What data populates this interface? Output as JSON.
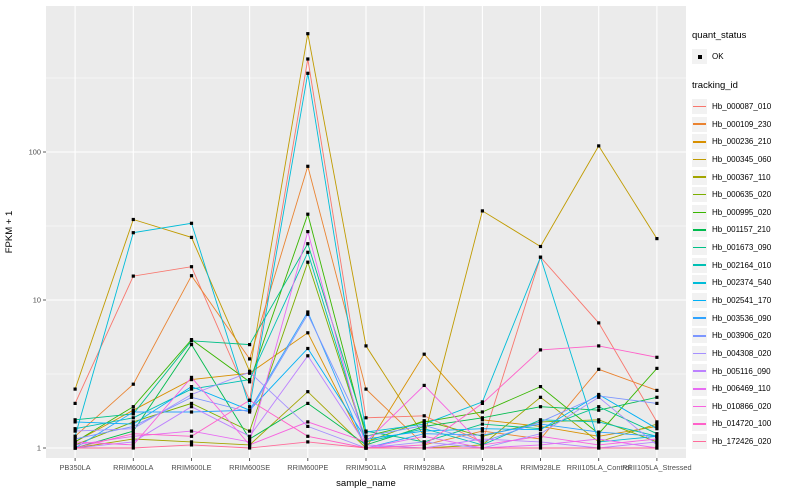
{
  "chart_data": {
    "type": "line",
    "title": "",
    "xlabel": "sample_name",
    "ylabel": "FPKM + 1",
    "y_scale": "log10",
    "yticks": [
      1,
      10,
      100
    ],
    "ylim": [
      1,
      900
    ],
    "grid": true,
    "panel_bg": "#EBEBEB",
    "grid_color": "#FFFFFF",
    "point_color": "#000000",
    "legend_position": "right",
    "categories": [
      "PB350LA",
      "RRIM600LA",
      "RRIM600LE",
      "RRIM600SE",
      "RRIM600PE",
      "RRIM901LA",
      "RRIM928BA",
      "RRIM928LA",
      "RRIM928LE",
      "RRII105LA_Control",
      "RRII105LA_Stressed"
    ],
    "series": [
      {
        "name": "Hb_000087_010",
        "color": "#F8766D",
        "values": [
          2.0,
          14.5,
          16.8,
          2.1,
          425,
          1.6,
          1.65,
          1.1,
          19.5,
          7.0,
          1.5
        ]
      },
      {
        "name": "Hb_000109_230",
        "color": "#EA8331",
        "values": [
          1.2,
          2.7,
          14.6,
          4.0,
          80,
          2.5,
          1.05,
          1.3,
          1.15,
          3.4,
          2.45
        ]
      },
      {
        "name": "Hb_000236_210",
        "color": "#D89000",
        "values": [
          1.1,
          1.8,
          2.9,
          3.2,
          6.0,
          1.0,
          4.3,
          1.55,
          1.4,
          1.2,
          1.4
        ]
      },
      {
        "name": "Hb_000345_060",
        "color": "#C09B00",
        "values": [
          2.5,
          35,
          26.5,
          3.3,
          630,
          4.9,
          1.2,
          40,
          23,
          110,
          26
        ]
      },
      {
        "name": "Hb_000367_110",
        "color": "#A3A500",
        "values": [
          1.0,
          1.15,
          1.1,
          1.05,
          2.4,
          1.0,
          1.0,
          1.05,
          2.2,
          1.1,
          1.45
        ]
      },
      {
        "name": "Hb_000635_020",
        "color": "#7CAE00",
        "values": [
          1.05,
          1.5,
          2.0,
          1.3,
          18,
          1.1,
          1.53,
          1.2,
          1.5,
          1.55,
          1.1
        ]
      },
      {
        "name": "Hb_000995_020",
        "color": "#39B600",
        "values": [
          1.1,
          1.9,
          5.4,
          2.8,
          38,
          1.2,
          1.5,
          1.75,
          2.6,
          1.25,
          3.45
        ]
      },
      {
        "name": "Hb_001157_210",
        "color": "#00BB4E",
        "values": [
          1.0,
          1.3,
          5.0,
          1.15,
          2.0,
          1.05,
          1.4,
          1.6,
          1.9,
          1.8,
          2.2
        ]
      },
      {
        "name": "Hb_001673_090",
        "color": "#00C087",
        "values": [
          1.55,
          1.7,
          5.3,
          5.0,
          24,
          1.3,
          1.1,
          1.45,
          1.35,
          1.9,
          1.25
        ]
      },
      {
        "name": "Hb_002164_010",
        "color": "#00C0B4",
        "values": [
          1.35,
          1.6,
          2.5,
          2.9,
          21,
          1.1,
          1.35,
          1.05,
          1.55,
          1.5,
          1.2
        ]
      },
      {
        "name": "Hb_002374_540",
        "color": "#00BCD8",
        "values": [
          1.2,
          28.5,
          33,
          1.9,
          340,
          1.28,
          1.45,
          2.05,
          19.5,
          1.1,
          1.2
        ]
      },
      {
        "name": "Hb_002541_170",
        "color": "#00B0F6",
        "values": [
          1.5,
          1.45,
          2.6,
          1.8,
          4.7,
          1.15,
          1.3,
          1.35,
          1.33,
          2.3,
          1.35
        ]
      },
      {
        "name": "Hb_003536_090",
        "color": "#2FA3FF",
        "values": [
          1.0,
          1.75,
          1.75,
          1.8,
          8.3,
          1.0,
          1.25,
          1.22,
          1.45,
          1.28,
          1.2
        ]
      },
      {
        "name": "Hb_003906_020",
        "color": "#7C96FF",
        "values": [
          1.15,
          1.4,
          2.2,
          1.75,
          8.0,
          1.2,
          1.42,
          1.1,
          1.5,
          2.25,
          2.0
        ]
      },
      {
        "name": "Hb_004308_020",
        "color": "#A590FF",
        "values": [
          1.3,
          1.35,
          2.3,
          3.25,
          1.4,
          1.0,
          1.1,
          1.0,
          1.25,
          2.2,
          1.05
        ]
      },
      {
        "name": "Hb_005116_090",
        "color": "#BC81FF",
        "values": [
          1.0,
          1.1,
          1.9,
          1.2,
          4.2,
          1.05,
          1.0,
          1.15,
          1.1,
          1.0,
          1.1
        ]
      },
      {
        "name": "Hb_006469_110",
        "color": "#E76BF3",
        "values": [
          1.05,
          1.2,
          1.3,
          1.1,
          29,
          1.0,
          1.2,
          1.0,
          1.05,
          1.15,
          1.0
        ]
      },
      {
        "name": "Hb_010866_020",
        "color": "#F763E0",
        "values": [
          1.1,
          1.05,
          3.0,
          1.05,
          1.5,
          1.1,
          2.65,
          1.05,
          1.2,
          1.05,
          1.15
        ]
      },
      {
        "name": "Hb_014720_100",
        "color": "#FF61C9",
        "values": [
          1.0,
          1.25,
          1.2,
          2.1,
          1.2,
          1.0,
          1.05,
          2.0,
          4.6,
          4.9,
          4.1
        ]
      },
      {
        "name": "Hb_172426_020",
        "color": "#FF6B9A",
        "values": [
          1.0,
          1.0,
          1.05,
          1.0,
          1.1,
          1.0,
          1.0,
          1.0,
          1.0,
          1.0,
          1.0
        ]
      }
    ]
  },
  "legend": {
    "quant_status_title": "quant_status",
    "quant_status_items": [
      {
        "label": "OK",
        "symbol": "point"
      }
    ],
    "tracking_title": "tracking_id"
  }
}
